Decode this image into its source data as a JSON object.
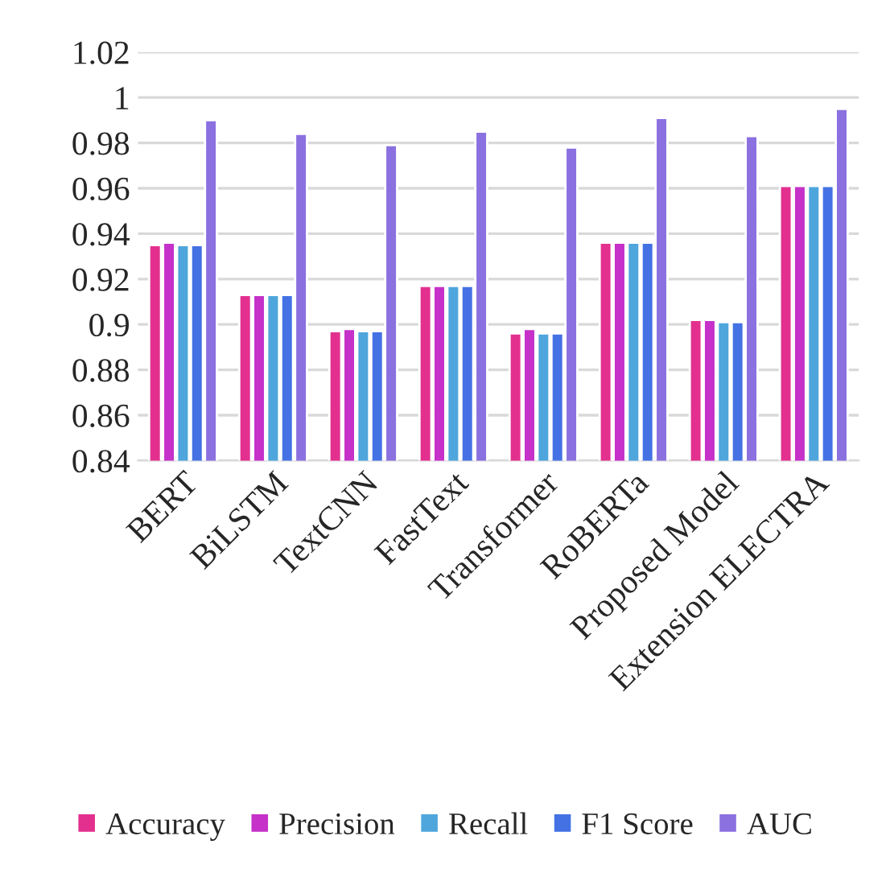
{
  "chart_data": {
    "type": "bar",
    "categories": [
      "BERT",
      "BiLSTM",
      "TextCNN",
      "FastText",
      "Transformer",
      "RoBERTa",
      "Proposed Model",
      "Extension ELECTRA"
    ],
    "series": [
      {
        "name": "Accuracy",
        "color": "#e3308f",
        "values": [
          0.935,
          0.913,
          0.897,
          0.917,
          0.896,
          0.936,
          0.902,
          0.961
        ]
      },
      {
        "name": "Precision",
        "color": "#c531c9",
        "values": [
          0.936,
          0.913,
          0.898,
          0.917,
          0.898,
          0.936,
          0.902,
          0.961
        ]
      },
      {
        "name": "Recall",
        "color": "#4ea6dc",
        "values": [
          0.935,
          0.913,
          0.897,
          0.917,
          0.896,
          0.936,
          0.901,
          0.961
        ]
      },
      {
        "name": "F1 Score",
        "color": "#4472e4",
        "values": [
          0.935,
          0.913,
          0.897,
          0.917,
          0.896,
          0.936,
          0.901,
          0.961
        ]
      },
      {
        "name": "AUC",
        "color": "#8b70e0",
        "values": [
          0.99,
          0.984,
          0.979,
          0.985,
          0.978,
          0.991,
          0.983,
          0.995
        ]
      }
    ],
    "ylim": [
      0.84,
      1.02
    ],
    "yticks": [
      0.84,
      0.86,
      0.88,
      0.9,
      0.92,
      0.94,
      0.96,
      0.98,
      1,
      1.02
    ],
    "grid": "y",
    "legend": "bottom"
  }
}
